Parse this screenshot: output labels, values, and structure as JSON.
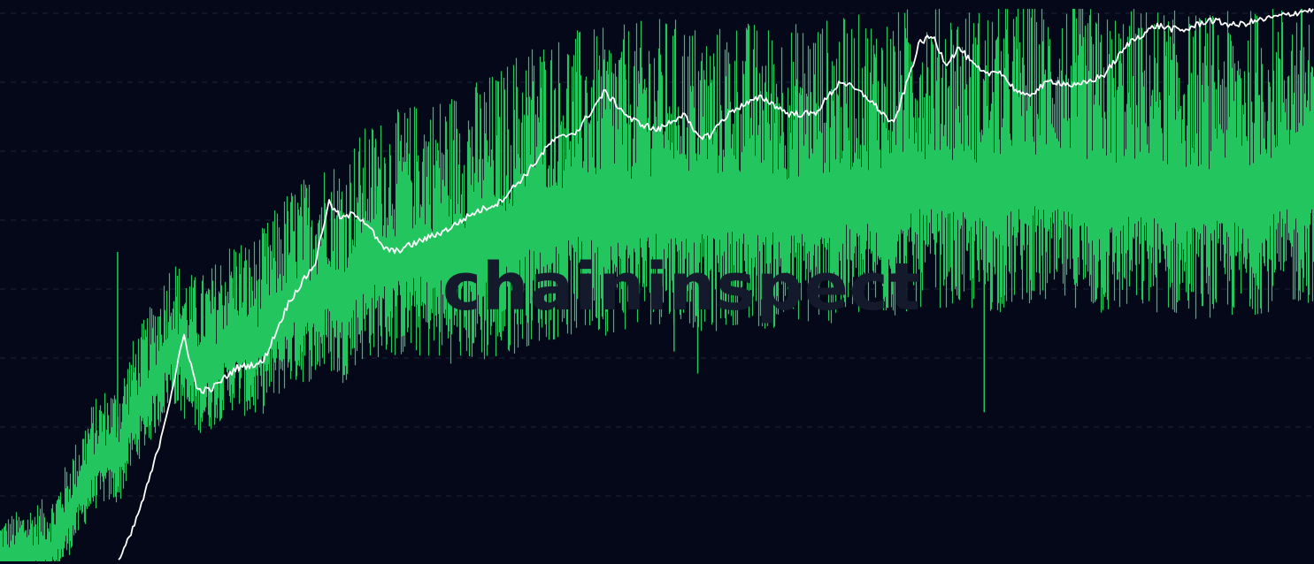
{
  "watermark": "chaininspect",
  "colors": {
    "background": "#050818",
    "grid": "#1b2236",
    "bar_series": "#22c55e",
    "line_series": "#ffffff",
    "watermark": "#141a2c"
  },
  "chart_data": {
    "type": "line",
    "title": "",
    "xlabel": "",
    "ylabel": "",
    "grid": true,
    "legend": "none",
    "x_range": [
      0,
      100
    ],
    "y_range": [
      0,
      100
    ],
    "series": [
      {
        "kind": "bars",
        "color": "#22c55e",
        "x": [
          0,
          2,
          4,
          5,
          6,
          7,
          8,
          9,
          10,
          11,
          12,
          13,
          14,
          15,
          16,
          17,
          18,
          19,
          20,
          22,
          24,
          25,
          26,
          27,
          28,
          30,
          32,
          34,
          36,
          38,
          40,
          42,
          44,
          46,
          48,
          50,
          52,
          54,
          56,
          58,
          60,
          62,
          64,
          66,
          68,
          70,
          72,
          74,
          76,
          78,
          80,
          82,
          84,
          86,
          88,
          90,
          92,
          94,
          96,
          98,
          100
        ],
        "y": [
          1,
          2,
          3,
          8,
          13,
          18,
          20,
          20,
          27,
          31,
          35,
          41,
          38,
          36,
          37,
          40,
          42,
          40,
          42,
          48,
          50,
          52,
          50,
          54,
          56,
          57,
          58,
          58,
          59,
          60,
          64,
          65,
          66,
          66,
          67,
          68,
          68,
          66,
          68,
          67,
          67,
          68,
          68,
          69,
          69,
          71,
          71,
          70,
          70,
          72,
          71,
          71,
          69,
          70,
          70,
          69,
          69,
          69,
          70,
          71,
          72
        ]
      },
      {
        "kind": "line",
        "color": "#ffffff",
        "x": [
          9,
          10,
          11,
          12,
          13,
          14,
          15,
          16,
          17,
          18,
          20,
          22,
          24,
          25,
          26,
          27,
          28,
          29,
          30,
          32,
          34,
          36,
          38,
          40,
          42,
          44,
          46,
          48,
          50,
          52,
          53,
          54,
          55,
          56,
          58,
          60,
          62,
          64,
          66,
          68,
          70,
          71,
          72,
          73,
          74,
          75,
          76,
          77,
          78,
          80,
          82,
          84,
          86,
          88,
          90,
          92,
          94,
          96,
          98,
          100
        ],
        "y": [
          0,
          5,
          12,
          20,
          30,
          41,
          31,
          31,
          33,
          35,
          36,
          47,
          54,
          65,
          62,
          63,
          61,
          57,
          56,
          58,
          60,
          63,
          65,
          70,
          76,
          78,
          85,
          80,
          78,
          81,
          77,
          77,
          80,
          82,
          84,
          81,
          81,
          87,
          84,
          79,
          94,
          95,
          90,
          93,
          90,
          88,
          89,
          86,
          84,
          87,
          86,
          88,
          94,
          97,
          96,
          98,
          97,
          98,
          99,
          100
        ],
        "segments": [
          [
            0,
            25
          ],
          [
            25,
            60
          ]
        ]
      }
    ],
    "markers": {
      "bar_spikes": [
        {
          "x": 8.95,
          "y": 56
        },
        {
          "x": 28.6,
          "y": 76
        },
        {
          "x": 41.5,
          "y": 80
        },
        {
          "x": 51.3,
          "y": 38
        },
        {
          "x": 53.1,
          "y": 34
        },
        {
          "x": 68.6,
          "y": 88
        },
        {
          "x": 74.0,
          "y": 87
        },
        {
          "x": 74.9,
          "y": 27
        }
      ]
    }
  }
}
